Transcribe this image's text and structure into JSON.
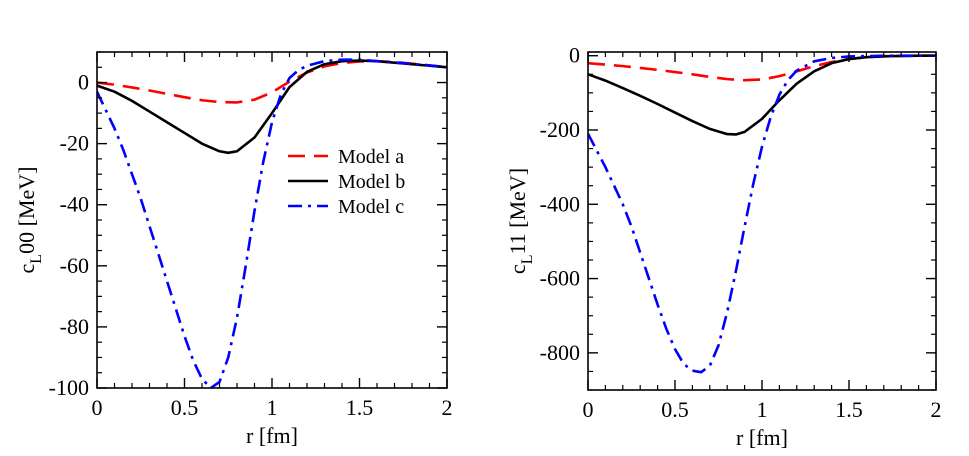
{
  "chart_data": [
    {
      "type": "line",
      "xlabel": "r [fm]",
      "ylabel": {
        "main": "c",
        "sub": "L",
        "rest": "00 [MeV]"
      },
      "xlim": [
        0,
        2
      ],
      "ylim": [
        -100,
        10
      ],
      "xticks": [
        0,
        0.5,
        1,
        1.5,
        2
      ],
      "xtick_labels": [
        "0",
        "0.5",
        "1",
        "1.5",
        "2"
      ],
      "yticks": [
        0,
        -20,
        -40,
        -60,
        -80,
        -100
      ],
      "ytick_labels": [
        "0",
        "-20",
        "-40",
        "-60",
        "-80",
        "-100"
      ],
      "x_minor_step": 0.1,
      "y_minor_step": 5,
      "legend": {
        "position": "right-center",
        "entries": [
          "Model a",
          "Model b",
          "Model c"
        ]
      },
      "series": [
        {
          "name": "Model a",
          "color": "#ff0000",
          "dash": "long-dash",
          "x": [
            0,
            0.1,
            0.2,
            0.3,
            0.4,
            0.5,
            0.6,
            0.7,
            0.8,
            0.9,
            1.0,
            1.1,
            1.2,
            1.3,
            1.4,
            1.5,
            1.6,
            1.7,
            1.8,
            1.9,
            2.0
          ],
          "y": [
            0,
            -0.7,
            -1.6,
            -2.6,
            -3.7,
            -4.8,
            -5.8,
            -6.4,
            -6.5,
            -5.6,
            -3.2,
            0.3,
            3.3,
            5.3,
            6.4,
            6.9,
            7.0,
            6.7,
            6.2,
            5.6,
            5.0
          ]
        },
        {
          "name": "Model b",
          "color": "#000000",
          "dash": "solid",
          "x": [
            0,
            0.1,
            0.2,
            0.3,
            0.4,
            0.5,
            0.6,
            0.7,
            0.75,
            0.8,
            0.9,
            1.0,
            1.1,
            1.2,
            1.3,
            1.4,
            1.5,
            1.6,
            1.7,
            1.8,
            1.9,
            2.0
          ],
          "y": [
            -1,
            -3,
            -6,
            -9.5,
            -13,
            -16.5,
            -20,
            -22.5,
            -23,
            -22.5,
            -18,
            -10,
            -1.5,
            3.5,
            6,
            7,
            7.2,
            7,
            6.5,
            6,
            5.5,
            5
          ]
        },
        {
          "name": "Model c",
          "color": "#0000ff",
          "dash": "dash-dot",
          "x": [
            0,
            0.05,
            0.1,
            0.15,
            0.2,
            0.25,
            0.3,
            0.35,
            0.4,
            0.45,
            0.5,
            0.55,
            0.6,
            0.65,
            0.7,
            0.75,
            0.8,
            0.85,
            0.9,
            0.95,
            1.0,
            1.05,
            1.1,
            1.15,
            1.2,
            1.3,
            1.4,
            1.5,
            1.6,
            1.7,
            1.8,
            1.9,
            2.0
          ],
          "y": [
            -3,
            -9,
            -15,
            -22,
            -30,
            -38,
            -47,
            -56,
            -65,
            -74,
            -83,
            -91,
            -97,
            -100,
            -98,
            -90,
            -77,
            -60,
            -42,
            -26,
            -13,
            -4,
            1.5,
            4,
            5.5,
            7,
            7.5,
            7.5,
            7,
            6.6,
            6.1,
            5.6,
            5.0
          ]
        }
      ]
    },
    {
      "type": "line",
      "xlabel": "r [fm]",
      "ylabel": {
        "main": "c",
        "sub": "L",
        "rest": "11 [MeV]"
      },
      "xlim": [
        0,
        2
      ],
      "ylim": [
        -900,
        10
      ],
      "xticks": [
        0,
        0.5,
        1,
        1.5,
        2
      ],
      "xtick_labels": [
        "0",
        "0.5",
        "1",
        "1.5",
        "2"
      ],
      "yticks": [
        0,
        -200,
        -400,
        -600,
        -800
      ],
      "ytick_labels": [
        "0",
        "-200",
        "-400",
        "-600",
        "-800"
      ],
      "x_minor_step": 0.1,
      "y_minor_step": 50,
      "series": [
        {
          "name": "Model a",
          "color": "#ff0000",
          "dash": "long-dash",
          "x": [
            0,
            0.1,
            0.2,
            0.3,
            0.4,
            0.5,
            0.6,
            0.7,
            0.8,
            0.9,
            1.0,
            1.1,
            1.2,
            1.3,
            1.4,
            1.5,
            1.6,
            1.7,
            1.8,
            1.9,
            2.0
          ],
          "y": [
            -20,
            -24,
            -28,
            -33,
            -38,
            -44,
            -50,
            -57,
            -63,
            -66,
            -64,
            -55,
            -42,
            -28,
            -17,
            -9,
            -4,
            -1.5,
            -0.5,
            0,
            0
          ]
        },
        {
          "name": "Model b",
          "color": "#000000",
          "dash": "solid",
          "x": [
            0,
            0.1,
            0.2,
            0.3,
            0.4,
            0.5,
            0.6,
            0.7,
            0.8,
            0.85,
            0.9,
            1.0,
            1.1,
            1.2,
            1.3,
            1.4,
            1.5,
            1.6,
            1.7,
            1.8,
            1.9,
            2.0
          ],
          "y": [
            -50,
            -67,
            -87,
            -108,
            -130,
            -153,
            -176,
            -197,
            -211,
            -212,
            -205,
            -170,
            -120,
            -75,
            -42,
            -20,
            -9,
            -4,
            -1.5,
            -0.5,
            0,
            0
          ]
        },
        {
          "name": "Model c",
          "color": "#0000ff",
          "dash": "dash-dot",
          "x": [
            0,
            0.05,
            0.1,
            0.15,
            0.2,
            0.25,
            0.3,
            0.35,
            0.4,
            0.45,
            0.5,
            0.55,
            0.6,
            0.65,
            0.7,
            0.75,
            0.8,
            0.85,
            0.9,
            0.95,
            1.0,
            1.05,
            1.1,
            1.15,
            1.2,
            1.3,
            1.4,
            1.5,
            1.6,
            1.7,
            1.8,
            1.9,
            2.0
          ],
          "y": [
            -210,
            -255,
            -300,
            -350,
            -400,
            -460,
            -530,
            -600,
            -670,
            -735,
            -790,
            -830,
            -848,
            -852,
            -835,
            -780,
            -690,
            -580,
            -460,
            -345,
            -245,
            -165,
            -105,
            -65,
            -40,
            -15,
            -6,
            -2,
            -1,
            0,
            0,
            0,
            0
          ]
        }
      ]
    }
  ]
}
